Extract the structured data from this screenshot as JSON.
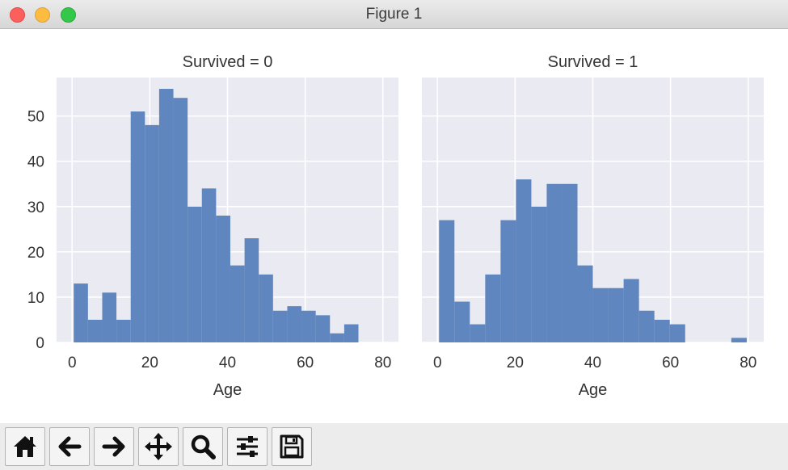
{
  "window": {
    "title": "Figure 1"
  },
  "toolbar": {
    "buttons": [
      {
        "icon": "home-icon"
      },
      {
        "icon": "back-arrow-icon"
      },
      {
        "icon": "forward-arrow-icon"
      },
      {
        "icon": "pan-move-icon"
      },
      {
        "icon": "zoom-magnifier-icon"
      },
      {
        "icon": "configure-subplots-icon"
      },
      {
        "icon": "save-floppy-icon"
      }
    ]
  },
  "colors": {
    "bar": "#5f86be",
    "axes_bg": "#eaeaf2",
    "grid": "#ffffff",
    "text": "#333333"
  },
  "chart_data": [
    {
      "type": "bar",
      "title": "Survived = 0",
      "xlabel": "Age",
      "ylabel": "",
      "bin_edges": [
        0.42,
        4.08,
        7.75,
        11.41,
        15.08,
        18.74,
        22.4,
        26.07,
        29.73,
        33.4,
        37.06,
        40.72,
        44.39,
        48.05,
        51.72,
        55.38,
        59.04,
        62.71,
        66.37,
        70.04,
        73.7
      ],
      "values": [
        13,
        5,
        11,
        5,
        51,
        48,
        56,
        54,
        30,
        34,
        28,
        17,
        23,
        15,
        7,
        8,
        7,
        6,
        2,
        4
      ],
      "xlim": [
        -4,
        84
      ],
      "ylim": [
        0,
        58.5
      ],
      "xticks": [
        "0",
        "20",
        "40",
        "60",
        "80"
      ],
      "yticks": [
        "0",
        "10",
        "20",
        "30",
        "40",
        "50"
      ],
      "grid": true
    },
    {
      "type": "bar",
      "title": "Survived = 1",
      "xlabel": "Age",
      "ylabel": "",
      "bin_edges": [
        0.42,
        4.38,
        8.34,
        12.3,
        16.26,
        20.22,
        24.17,
        28.13,
        32.09,
        36.05,
        40.01,
        43.97,
        47.93,
        51.89,
        55.85,
        59.81,
        63.77,
        67.73,
        71.69,
        75.65,
        79.61
      ],
      "values": [
        27,
        9,
        4,
        15,
        27,
        36,
        30,
        35,
        35,
        17,
        12,
        12,
        14,
        7,
        5,
        4,
        0,
        0,
        0,
        1
      ],
      "xlim": [
        -4,
        84
      ],
      "ylim": [
        0,
        58.5
      ],
      "xticks": [
        "0",
        "20",
        "40",
        "60",
        "80"
      ],
      "yticks": [
        "0",
        "10",
        "20",
        "30",
        "40",
        "50"
      ],
      "grid": true
    }
  ]
}
